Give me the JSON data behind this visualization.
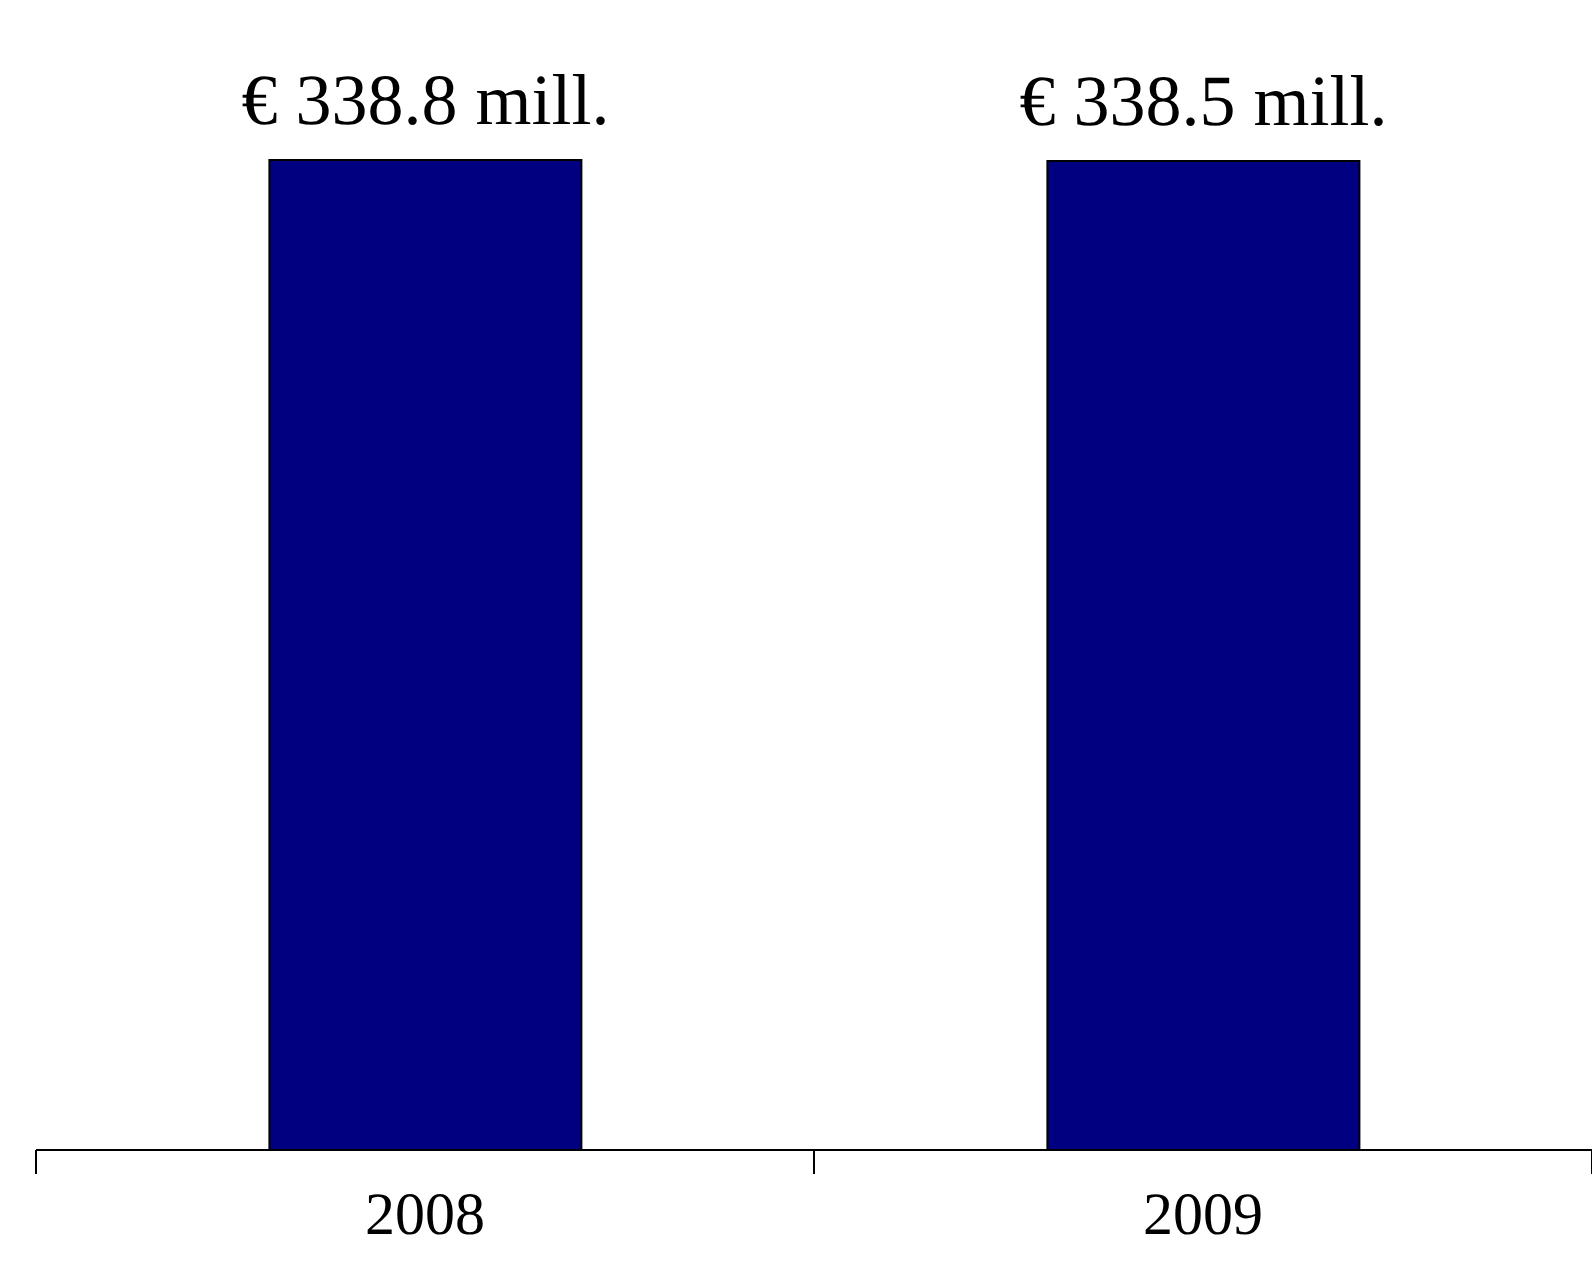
{
  "chart_data": {
    "type": "bar",
    "categories": [
      "2008",
      "2009"
    ],
    "series": [
      {
        "color": "#000080",
        "values": [
          338.8,
          338.5
        ],
        "value_labels": [
          "€ 338.8 mill.",
          "€ 338.5 mill."
        ]
      }
    ]
  }
}
